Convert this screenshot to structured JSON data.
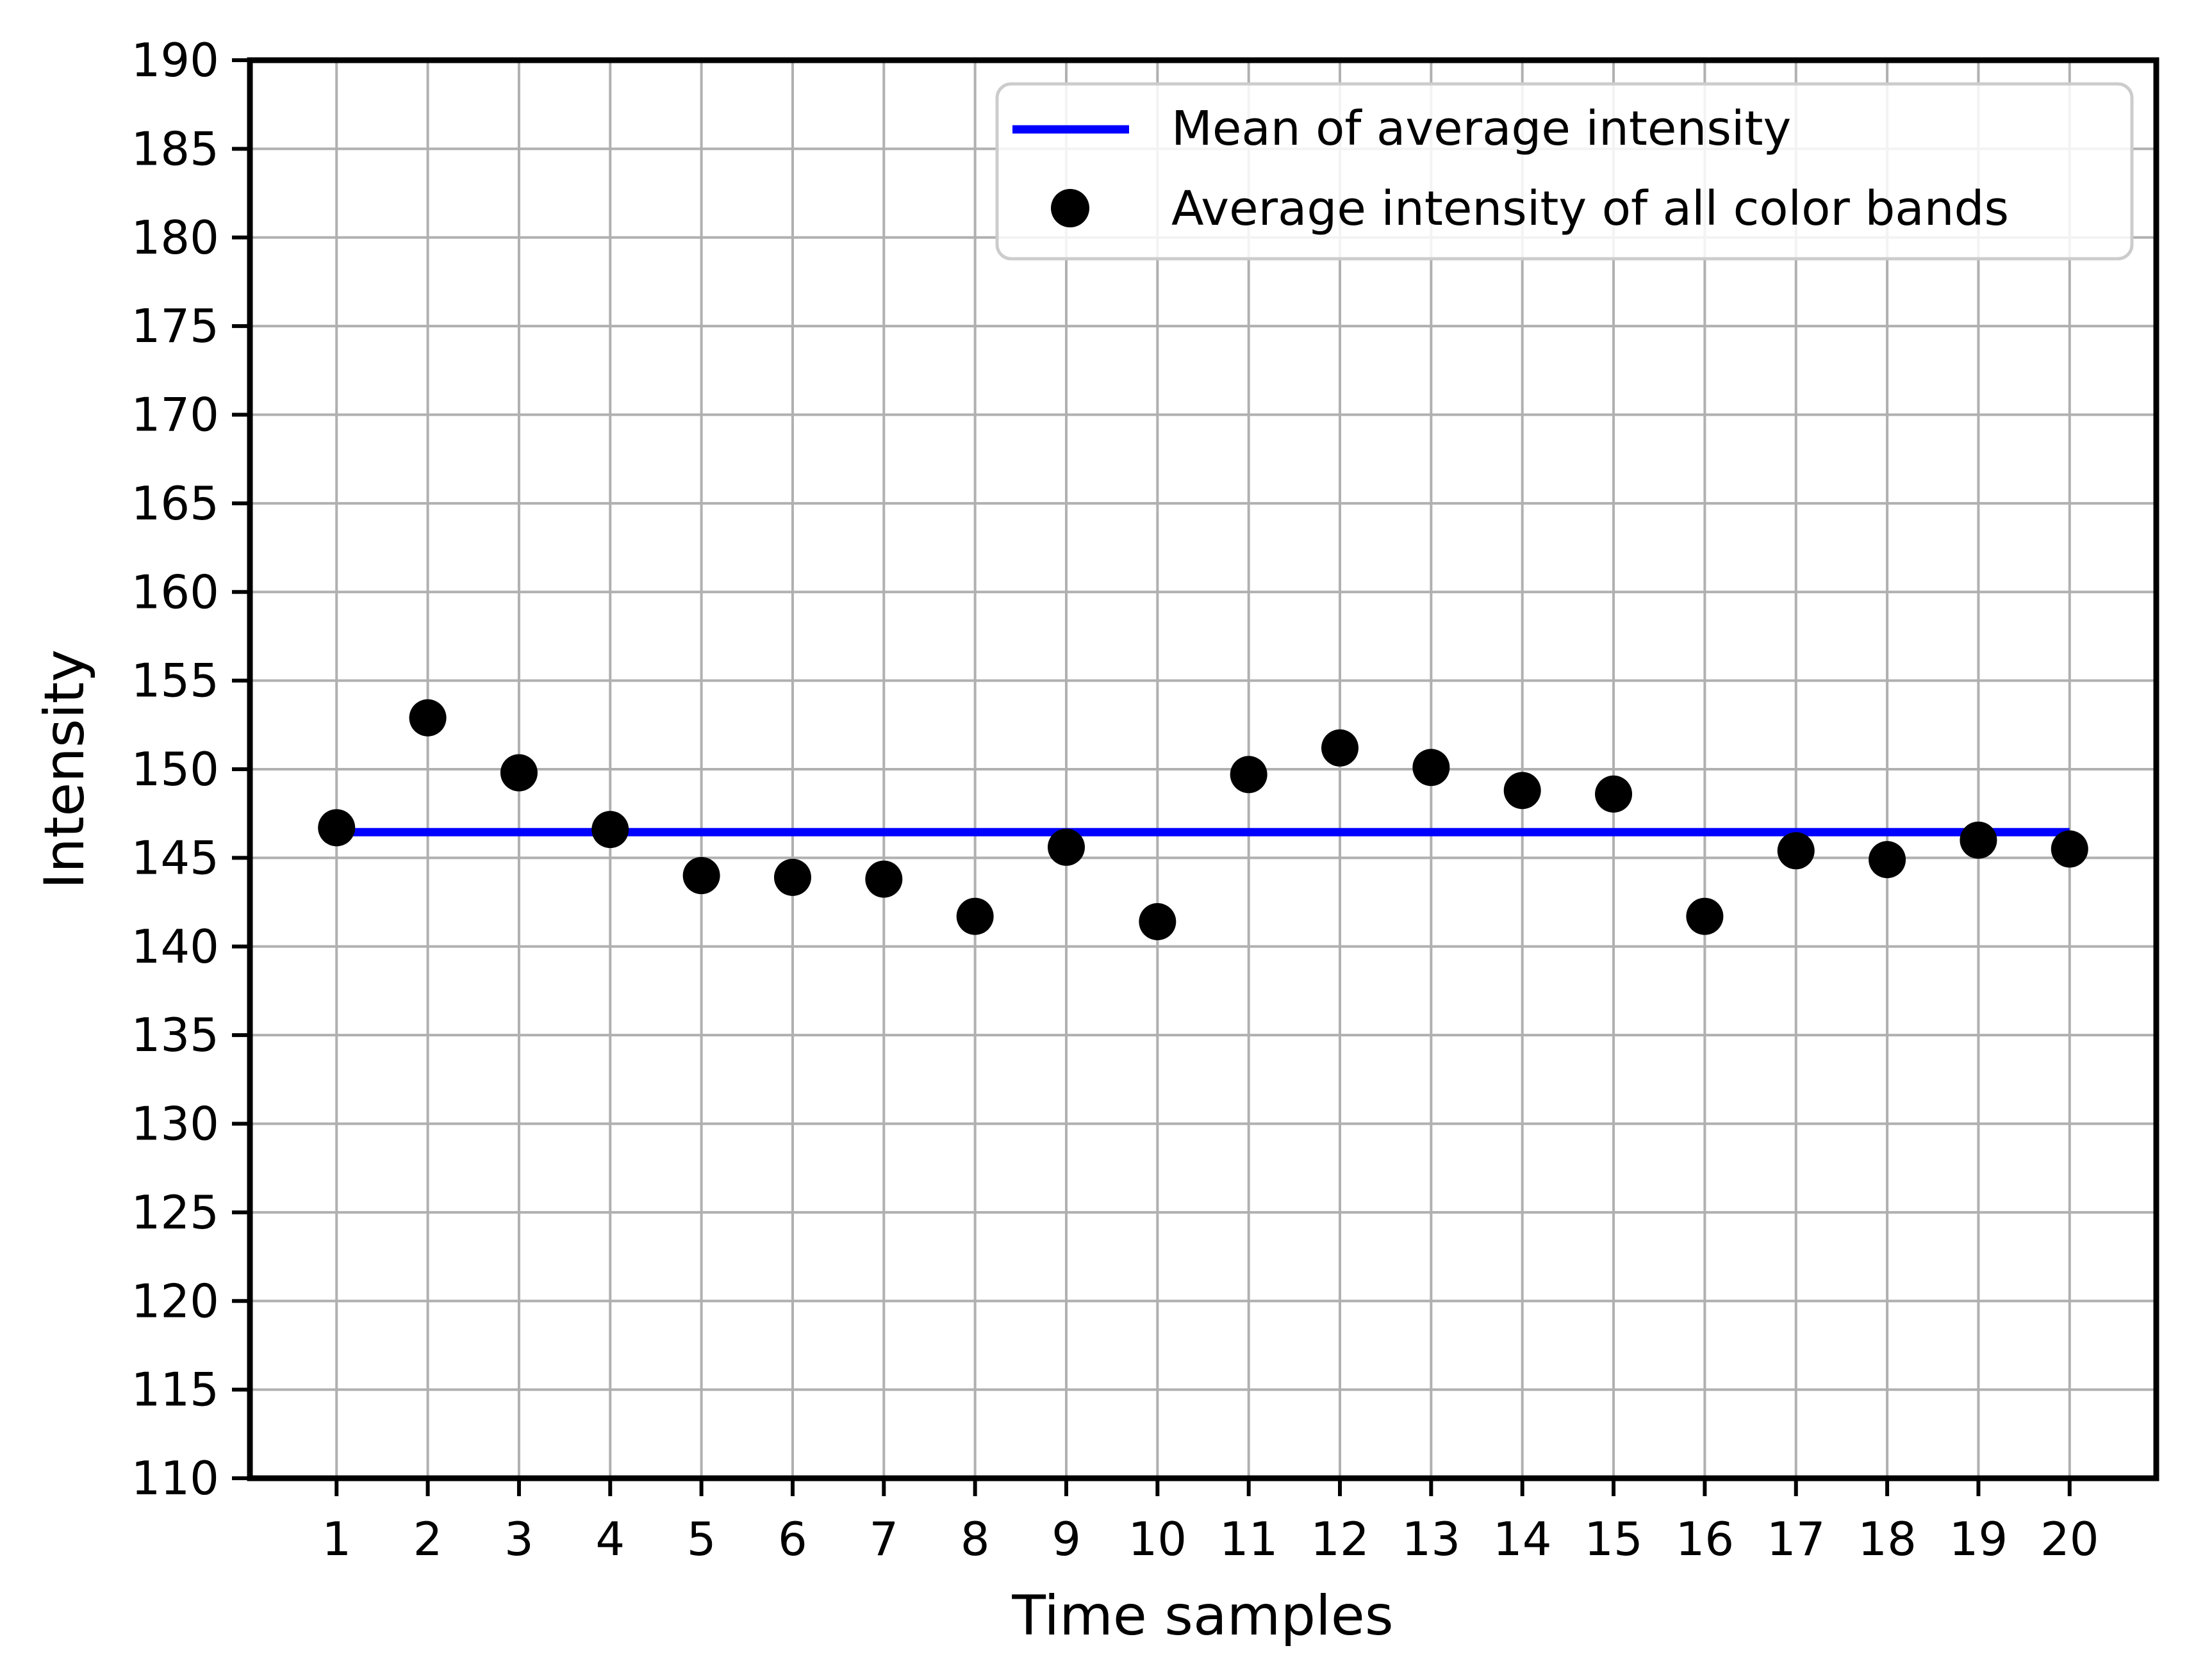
{
  "figure": {
    "background": "#ffffff"
  },
  "colors": {
    "mean_line": "#0000ff",
    "scatter_marker": "#000000",
    "gridline": "#b0b0b0",
    "spine": "#000000",
    "legend_border": "#cccccc",
    "legend_fill": "#ffffff"
  },
  "chart_data": {
    "type": "scatter",
    "title": "",
    "xlabel": "Time samples",
    "ylabel": "Intensity",
    "x": [
      1,
      2,
      3,
      4,
      5,
      6,
      7,
      8,
      9,
      10,
      11,
      12,
      13,
      14,
      15,
      16,
      17,
      18,
      19,
      20
    ],
    "series": [
      {
        "name": "Average intensity of all color bands",
        "kind": "scatter",
        "color": "#000000",
        "values": [
          146.7,
          152.9,
          149.8,
          146.6,
          144.0,
          143.9,
          143.8,
          141.7,
          145.6,
          141.4,
          149.7,
          151.2,
          150.1,
          148.8,
          148.6,
          141.7,
          145.4,
          144.9,
          146.0,
          145.5
        ]
      },
      {
        "name": "Mean of average intensity",
        "kind": "hline",
        "color": "#0000ff",
        "value": 146.45,
        "x_start": 1,
        "x_end": 20
      }
    ],
    "xlim": [
      0.05,
      20.95
    ],
    "ylim": [
      110,
      190
    ],
    "xticks": [
      1,
      2,
      3,
      4,
      5,
      6,
      7,
      8,
      9,
      10,
      11,
      12,
      13,
      14,
      15,
      16,
      17,
      18,
      19,
      20
    ],
    "yticks": [
      190,
      185,
      180,
      175,
      170,
      165,
      160,
      155,
      150,
      145,
      140,
      135,
      130,
      125,
      120,
      115,
      110
    ],
    "grid": true,
    "legend_position": "upper right"
  }
}
